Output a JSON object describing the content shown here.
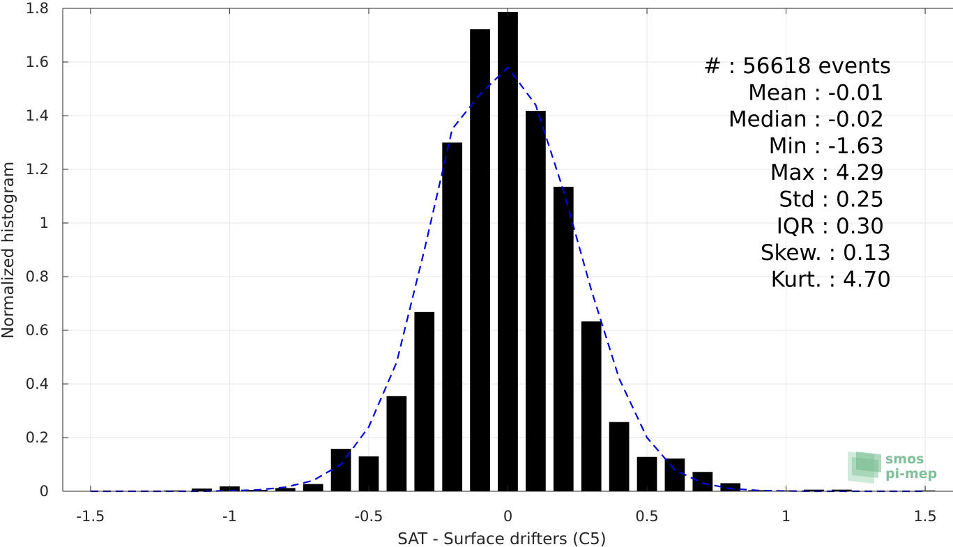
{
  "chart_data": {
    "type": "bar",
    "xlabel": "SAT - Surface drifters (C5)",
    "ylabel": "Normalized histogram",
    "xlim": [
      -1.6,
      1.6
    ],
    "ylim": [
      0,
      1.8
    ],
    "grid": true,
    "xticks": [
      -1.5,
      -1,
      -0.5,
      0,
      0.5,
      1,
      1.5
    ],
    "xtick_labels": [
      "-1.5",
      "-1",
      "-0.5",
      "0",
      "0.5",
      "1",
      "1.5"
    ],
    "yticks": [
      0,
      0.2,
      0.4,
      0.6,
      0.8,
      1,
      1.2,
      1.4,
      1.6,
      1.8
    ],
    "ytick_labels": [
      "0",
      "0.2",
      "0.4",
      "0.6",
      "0.8",
      "1",
      "1.2",
      "1.4",
      "1.6",
      "1.8"
    ],
    "bar_color": "#000000",
    "bar_width": 0.072,
    "bars": {
      "x": [
        -1.5,
        -1.4,
        -1.3,
        -1.2,
        -1.1,
        -1.0,
        -0.9,
        -0.8,
        -0.7,
        -0.6,
        -0.5,
        -0.4,
        -0.3,
        -0.2,
        -0.1,
        0.0,
        0.1,
        0.2,
        0.3,
        0.4,
        0.5,
        0.6,
        0.7,
        0.8,
        0.9,
        1.0,
        1.1,
        1.2,
        1.3,
        1.4,
        1.5
      ],
      "values": [
        0.0,
        0.0,
        0.0,
        0.003,
        0.01,
        0.018,
        0.005,
        0.012,
        0.027,
        0.158,
        0.13,
        0.355,
        0.668,
        1.3,
        1.722,
        1.787,
        1.418,
        1.135,
        0.633,
        0.258,
        0.128,
        0.122,
        0.072,
        0.03,
        0.004,
        0.003,
        0.006,
        0.006,
        0.001,
        0.0,
        0.003
      ]
    },
    "fit_curve": {
      "color": "#0000dd",
      "style": "dashed",
      "x": [
        -1.5,
        -1.4,
        -1.3,
        -1.2,
        -1.1,
        -1.0,
        -0.9,
        -0.8,
        -0.7,
        -0.6,
        -0.5,
        -0.4,
        -0.3,
        -0.2,
        -0.1,
        0.0,
        0.1,
        0.2,
        0.3,
        0.4,
        0.5,
        0.6,
        0.7,
        0.8,
        0.9,
        1.0,
        1.1,
        1.2,
        1.3,
        1.4,
        1.5
      ],
      "y": [
        0.0,
        0.0,
        0.0,
        0.0,
        0.0,
        0.002,
        0.005,
        0.015,
        0.04,
        0.1,
        0.24,
        0.48,
        0.9,
        1.35,
        1.48,
        1.58,
        1.44,
        1.12,
        0.75,
        0.42,
        0.2,
        0.08,
        0.03,
        0.01,
        0.003,
        0.001,
        0.0,
        0.0,
        0.0,
        0.0,
        0.0
      ]
    },
    "stats": [
      {
        "label": "#  : 56618 events"
      },
      {
        "label": "Mean : -0.01"
      },
      {
        "label": "Median : -0.02"
      },
      {
        "label": "Min : -1.63"
      },
      {
        "label": "Max : 4.29"
      },
      {
        "label": "Std : 0.25"
      },
      {
        "label": "IQR : 0.30"
      },
      {
        "label": "Skew. : 0.13"
      },
      {
        "label": "Kurt. : 4.70"
      }
    ]
  },
  "logo": {
    "line1": "smos",
    "line2": "pi-mep"
  }
}
